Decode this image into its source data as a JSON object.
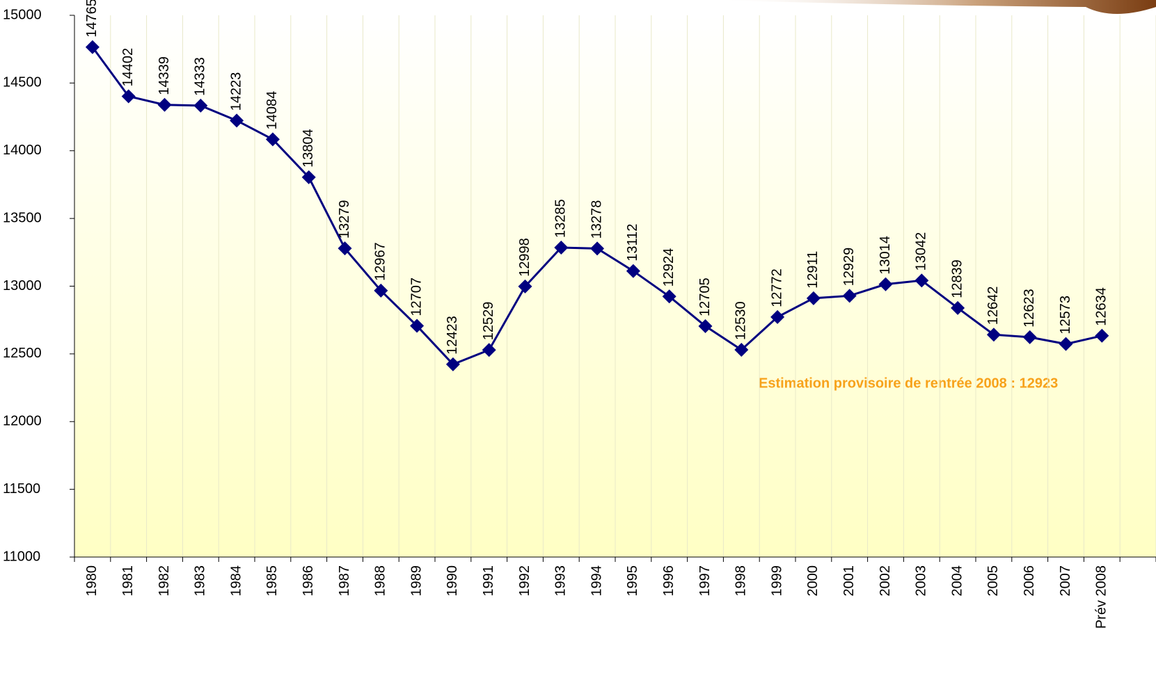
{
  "chart_data": {
    "type": "line",
    "annotation": "Estimation provisoire de rentrée 2008 : 12923",
    "categories": [
      "1980",
      "1981",
      "1982",
      "1983",
      "1984",
      "1985",
      "1986",
      "1987",
      "1988",
      "1989",
      "1990",
      "1991",
      "1992",
      "1993",
      "1994",
      "1995",
      "1996",
      "1997",
      "1998",
      "1999",
      "2000",
      "2001",
      "2002",
      "2003",
      "2004",
      "2005",
      "2006",
      "2007",
      "Prév 2008",
      null
    ],
    "series": [
      {
        "color": "#000080",
        "values": [
          14765,
          14402,
          14339,
          14333,
          14223,
          14084,
          13804,
          13279,
          12967,
          12707,
          12423,
          12529,
          12998,
          13285,
          13278,
          13112,
          12924,
          12705,
          12530,
          12772,
          12911,
          12929,
          13014,
          13042,
          12839,
          12642,
          12623,
          12573,
          12634,
          null
        ]
      }
    ],
    "ylim": [
      11000,
      15000
    ],
    "yticks": [
      11000,
      11500,
      12000,
      12500,
      13000,
      13500,
      14000,
      14500,
      15000
    ],
    "annotation_color": "#f7a21b"
  }
}
